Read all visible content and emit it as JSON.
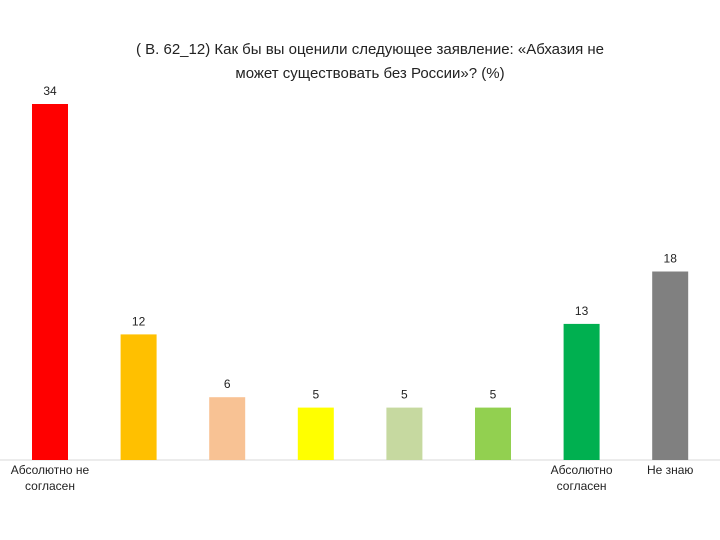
{
  "chart_data": {
    "type": "bar",
    "title_lines": [
      "( В. 62_12)  Как бы вы оценили следующее заявление: «Абхазия не",
      "может существовать без России»? (%)"
    ],
    "categories": [
      [
        "Абсолютно не",
        "согласен"
      ],
      [],
      [],
      [],
      [],
      [],
      [
        "Абсолютно",
        "согласен"
      ],
      [
        "Не знаю"
      ]
    ],
    "values": [
      34,
      12,
      6,
      5,
      5,
      5,
      13,
      18
    ],
    "colors": [
      "#ff0000",
      "#ffc000",
      "#f8c294",
      "#ffff00",
      "#c6d9a0",
      "#92d050",
      "#00b050",
      "#808080"
    ],
    "ylim": [
      0,
      34
    ],
    "grid": false,
    "legend": "none"
  }
}
